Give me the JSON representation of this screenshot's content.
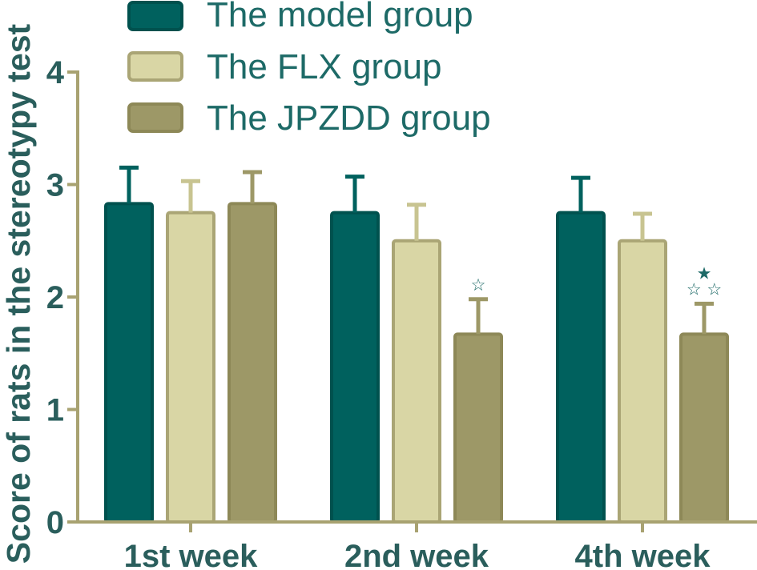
{
  "chart_data": {
    "type": "bar",
    "categories": [
      "1st week",
      "2nd week",
      "4th week"
    ],
    "series": [
      {
        "name": "The model group",
        "values": [
          2.83,
          2.75,
          2.75
        ],
        "errors": [
          0.32,
          0.32,
          0.31
        ],
        "color": "#00615e",
        "edge_color": "#00514e",
        "error_color": "#00615e"
      },
      {
        "name": "The FLX group",
        "values": [
          2.75,
          2.5,
          2.5
        ],
        "errors": [
          0.28,
          0.32,
          0.24
        ],
        "color": "#d9d6a5",
        "edge_color": "#aaa575",
        "error_color": "#c8c491"
      },
      {
        "name": "The JPZDD group",
        "values": [
          2.83,
          1.67,
          1.67
        ],
        "errors": [
          0.28,
          0.31,
          0.27
        ],
        "color": "#9d9867",
        "edge_color": "#8d8857",
        "error_color": "#9d9867"
      }
    ],
    "ylabel": "Score of rats in the stereotypy test",
    "ylim": [
      0,
      4
    ],
    "yticks": [
      0,
      1,
      2,
      3,
      4
    ],
    "grid": false,
    "legend": "top",
    "annotations": [
      {
        "category": "2nd week",
        "series": "The JPZDD group",
        "lines": [
          "☆"
        ]
      },
      {
        "category": "4th week",
        "series": "The JPZDD group",
        "lines": [
          "★",
          "☆ ☆"
        ]
      }
    ],
    "axis_color": "#a8a271",
    "text_color": "#2a5e5c"
  }
}
